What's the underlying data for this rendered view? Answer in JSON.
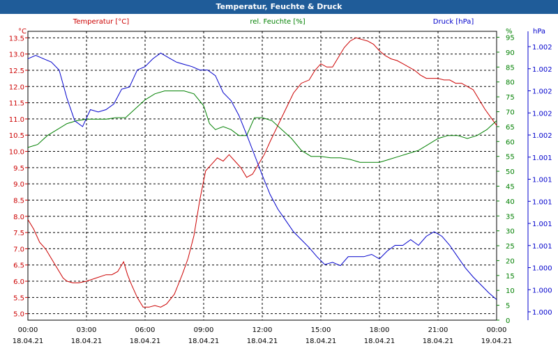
{
  "chart_data": {
    "type": "line",
    "title": "Temperatur, Feuchte & Druck",
    "axis_titles": {
      "temp": "Temperatur [°C]",
      "hum": "rel. Feuchte [%]",
      "pres": "Druck [hPa]"
    },
    "axis_units": {
      "temp": "°C",
      "hum": "%",
      "pres": "hPa"
    },
    "colors": {
      "temp": "#cc0000",
      "hum": "#008000",
      "pres": "#0000cc",
      "title_bar": "#1f5c99"
    },
    "grid": true,
    "x_ticks": [
      {
        "t": "00:00",
        "d": "18.04.21"
      },
      {
        "t": "03:00",
        "d": "18.04.21"
      },
      {
        "t": "06:00",
        "d": "18.04.21"
      },
      {
        "t": "09:00",
        "d": "18.04.21"
      },
      {
        "t": "12:00",
        "d": "18.04.21"
      },
      {
        "t": "15:00",
        "d": "18.04.21"
      },
      {
        "t": "18:00",
        "d": "18.04.21"
      },
      {
        "t": "21:00",
        "d": "18.04.21"
      },
      {
        "t": "00:00",
        "d": "19.04.21"
      }
    ],
    "xlim_hours": [
      0,
      24
    ],
    "ylim_temp": [
      4.8,
      13.7
    ],
    "ylim_hum": [
      0,
      97
    ],
    "temp_ticks": [
      "13.5",
      "13.0",
      "12.5",
      "12.0",
      "11.5",
      "11.0",
      "10.5",
      "10.0",
      "9.5",
      "9.0",
      "8.5",
      "8.0",
      "7.5",
      "7.0",
      "6.5",
      "6.0",
      "5.5",
      "5.0"
    ],
    "hum_ticks": [
      "95",
      "90",
      "85",
      "80",
      "75",
      "70",
      "65",
      "60",
      "55",
      "50",
      "45",
      "40",
      "35",
      "30",
      "25",
      "20",
      "15",
      "10",
      "5",
      "0"
    ],
    "pres_ticks": [
      "1.002",
      "1.002",
      "1.002",
      "1.002",
      "1.002",
      "1.001",
      "1.001",
      "1.001",
      "1.001",
      "1.001",
      "1.000",
      "1.000",
      "1.000"
    ],
    "series": [
      {
        "name": "Temperatur [°C]",
        "axis": "temp",
        "x": [
          0,
          0.3,
          0.6,
          0.9,
          1.2,
          1.5,
          1.8,
          2,
          2.3,
          2.6,
          3,
          3.5,
          4,
          4.3,
          4.6,
          4.9,
          5.1,
          5.3,
          5.6,
          5.9,
          6.2,
          6.5,
          6.8,
          7.1,
          7.5,
          7.9,
          8.2,
          8.5,
          8.8,
          9.1,
          9.4,
          9.7,
          10,
          10.3,
          10.6,
          10.9,
          11.2,
          11.5,
          11.8,
          12.1,
          12.4,
          12.8,
          13.2,
          13.6,
          14,
          14.4,
          14.7,
          15,
          15.3,
          15.6,
          15.9,
          16.2,
          16.5,
          16.8,
          17.1,
          17.4,
          17.7,
          18,
          18.3,
          18.6,
          18.9,
          19.2,
          19.5,
          19.8,
          20.1,
          20.4,
          20.7,
          21,
          21.3,
          21.6,
          21.9,
          22.2,
          22.5,
          22.8,
          23.1,
          23.4,
          23.7,
          24
        ],
        "y": [
          7.9,
          7.6,
          7.2,
          7.0,
          6.7,
          6.4,
          6.1,
          6.0,
          5.95,
          5.95,
          6.0,
          6.1,
          6.2,
          6.2,
          6.3,
          6.6,
          6.2,
          5.9,
          5.5,
          5.2,
          5.2,
          5.25,
          5.2,
          5.3,
          5.6,
          6.2,
          6.7,
          7.4,
          8.5,
          9.4,
          9.6,
          9.8,
          9.7,
          9.9,
          9.7,
          9.5,
          9.2,
          9.3,
          9.6,
          9.9,
          10.3,
          10.8,
          11.3,
          11.8,
          12.1,
          12.2,
          12.5,
          12.7,
          12.6,
          12.6,
          12.9,
          13.2,
          13.4,
          13.5,
          13.45,
          13.4,
          13.3,
          13.1,
          12.95,
          12.85,
          12.8,
          12.7,
          12.6,
          12.5,
          12.35,
          12.25,
          12.25,
          12.25,
          12.2,
          12.2,
          12.1,
          12.1,
          12.0,
          11.9,
          11.6,
          11.3,
          11.05,
          10.8
        ],
        "y_scale": "temp"
      },
      {
        "name": "rel. Feuchte [%]",
        "axis": "hum",
        "x": [
          0,
          0.5,
          1,
          1.5,
          2,
          2.5,
          3,
          3.5,
          4,
          4.5,
          5,
          5.5,
          6,
          6.5,
          7,
          7.5,
          8,
          8.5,
          9,
          9.3,
          9.6,
          10,
          10.4,
          10.8,
          11.2,
          11.6,
          12,
          12.5,
          13,
          13.5,
          14,
          14.5,
          15,
          15.5,
          16,
          16.5,
          17,
          17.5,
          18,
          18.5,
          19,
          19.5,
          20,
          20.5,
          21,
          21.5,
          22,
          22.5,
          23,
          23.5,
          24
        ],
        "y": [
          58,
          59,
          62,
          64,
          66,
          67,
          67.5,
          67.5,
          67.5,
          68,
          68,
          71,
          74,
          76,
          77,
          77,
          77,
          76,
          72,
          66,
          64,
          65,
          64,
          62,
          62,
          68,
          68,
          67,
          64,
          61,
          57,
          55,
          55,
          54.5,
          54.5,
          54,
          53,
          53,
          53,
          54,
          55,
          56,
          57,
          59,
          61,
          62,
          62,
          61,
          62,
          64,
          67
        ]
      },
      {
        "name": "Druck [hPa]",
        "axis": "pres",
        "x": [
          0,
          0.4,
          0.8,
          1.2,
          1.6,
          2,
          2.4,
          2.8,
          3.2,
          3.6,
          4,
          4.4,
          4.8,
          5.2,
          5.6,
          6,
          6.4,
          6.8,
          7.2,
          7.6,
          8,
          8.4,
          8.8,
          9.2,
          9.6,
          10,
          10.4,
          10.8,
          11.2,
          11.6,
          12,
          12.4,
          12.8,
          13.2,
          13.6,
          14,
          14.4,
          14.8,
          15.2,
          15.6,
          16,
          16.4,
          16.8,
          17.2,
          17.6,
          18,
          18.4,
          18.8,
          19.2,
          19.6,
          20,
          20.4,
          20.8,
          21.2,
          21.6,
          22,
          22.4,
          22.8,
          23.2,
          23.6,
          24
        ],
        "y": [
          1.00225,
          1.00228,
          1.00225,
          1.00222,
          1.00215,
          1.0019,
          1.0017,
          1.00165,
          1.0018,
          1.00178,
          1.0018,
          1.00185,
          1.00198,
          1.002,
          1.00215,
          1.00218,
          1.00225,
          1.0023,
          1.00226,
          1.00222,
          1.0022,
          1.00218,
          1.00215,
          1.00215,
          1.0021,
          1.00195,
          1.00188,
          1.00175,
          1.00158,
          1.0014,
          1.00122,
          1.00105,
          1.00092,
          1.00082,
          1.00072,
          1.00065,
          1.00058,
          1.0005,
          1.00043,
          1.00045,
          1.00042,
          1.0005,
          1.0005,
          1.0005,
          1.00052,
          1.00048,
          1.00055,
          1.0006,
          1.0006,
          1.00065,
          1.0006,
          1.00068,
          1.00072,
          1.00068,
          1.0006,
          1.0005,
          1.0004,
          1.00032,
          1.00025,
          1.00018,
          1.00012
        ]
      }
    ]
  }
}
